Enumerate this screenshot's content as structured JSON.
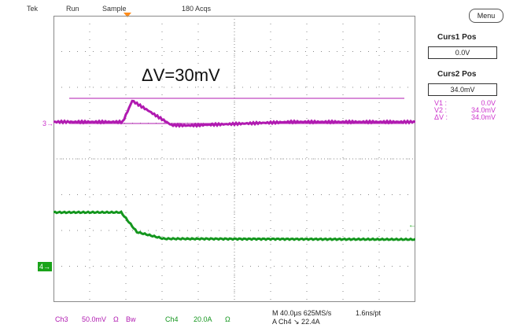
{
  "header": {
    "brand": "Tek",
    "run_state": "Run",
    "acquire_mode": "Sample",
    "acquisitions": "180 Acqs"
  },
  "annotation": {
    "text": "ΔV=30mV"
  },
  "markers": {
    "ch3": "3",
    "ch4": "4"
  },
  "footer": {
    "ch3_label": "Ch3",
    "ch3_scale": "50.0mV",
    "ch3_coupling": "Ω",
    "ch3_bw": "Bw",
    "ch4_label": "Ch4",
    "ch4_scale": "20.0A",
    "ch4_coupling": "Ω",
    "timebase": "M 40.0µs 625MS/s",
    "resolution": "1.6ns/pt",
    "trigger": "A  Ch4  ↘  22.4A"
  },
  "side_panel": {
    "menu_label": "Menu",
    "curs1_label": "Curs1 Pos",
    "curs1_value": "0.0V",
    "curs2_label": "Curs2 Pos",
    "curs2_value": "34.0mV",
    "readouts": [
      {
        "key": "V1 :",
        "value": "0.0V"
      },
      {
        "key": "V2 :",
        "value": "34.0mV"
      },
      {
        "key": "ΔV :",
        "value": "34.0mV"
      }
    ]
  },
  "colors": {
    "ch3": "#b01ab0",
    "ch4": "#14961e",
    "graticule": "#8a8a8a",
    "trigger": "#ff8c1a"
  }
}
